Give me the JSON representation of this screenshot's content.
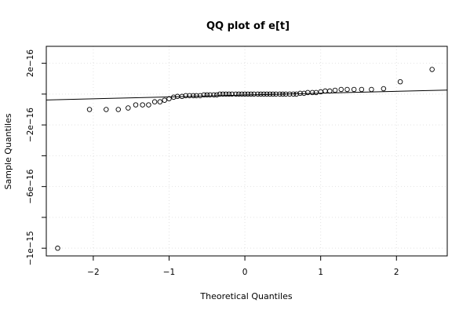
{
  "chart_data": {
    "type": "scatter",
    "title": "QQ plot of e[t]",
    "xlabel": "Theoretical Quantiles",
    "ylabel": "Sample Quantiles",
    "xlim": [
      -2.62,
      2.67
    ],
    "ylim": [
      -1.05e-15,
      3.1e-16
    ],
    "x_ticks": [
      -2,
      -1,
      0,
      1,
      2
    ],
    "x_tick_labels": [
      "−2",
      "−1",
      "0",
      "1",
      "2"
    ],
    "y_ticks": [
      2e-16,
      0,
      -2e-16,
      -4e-16,
      -6e-16,
      -8e-16,
      -1e-15
    ],
    "y_tick_labels": [
      "2e−16",
      "",
      "−2e−16",
      "",
      "−6e−16",
      "",
      "−1e−15"
    ],
    "grid": true,
    "reference_line": {
      "x": [
        -2.62,
        2.67
      ],
      "y": [
        -3.8e-17,
        2.6e-17
      ]
    },
    "points": [
      [
        -2.47,
        -1e-15
      ],
      [
        -2.05,
        -1e-16
      ],
      [
        -1.83,
        -1e-16
      ],
      [
        -1.67,
        -1e-16
      ],
      [
        -1.54,
        -9e-17
      ],
      [
        -1.44,
        -7e-17
      ],
      [
        -1.35,
        -7e-17
      ],
      [
        -1.27,
        -7e-17
      ],
      [
        -1.19,
        -5e-17
      ],
      [
        -1.12,
        -5e-17
      ],
      [
        -1.06,
        -4e-17
      ],
      [
        -1.0,
        -3e-17
      ],
      [
        -0.94,
        -2e-17
      ],
      [
        -0.89,
        -1.5e-17
      ],
      [
        -0.83,
        -1.5e-17
      ],
      [
        -0.78,
        -1e-17
      ],
      [
        -0.73,
        -1e-17
      ],
      [
        -0.68,
        -1e-17
      ],
      [
        -0.64,
        -1e-17
      ],
      [
        -0.59,
        -1e-17
      ],
      [
        -0.54,
        -5e-18
      ],
      [
        -0.5,
        -5e-18
      ],
      [
        -0.46,
        -5e-18
      ],
      [
        -0.41,
        -5e-18
      ],
      [
        -0.37,
        -5e-18
      ],
      [
        -0.33,
        0.0
      ],
      [
        -0.29,
        0.0
      ],
      [
        -0.25,
        0.0
      ],
      [
        -0.21,
        0.0
      ],
      [
        -0.17,
        0.0
      ],
      [
        -0.12,
        0.0
      ],
      [
        -0.08,
        0.0
      ],
      [
        -0.04,
        0.0
      ],
      [
        0.0,
        0.0
      ],
      [
        0.04,
        0.0
      ],
      [
        0.08,
        0.0
      ],
      [
        0.12,
        0.0
      ],
      [
        0.17,
        0.0
      ],
      [
        0.21,
        0.0
      ],
      [
        0.25,
        0.0
      ],
      [
        0.29,
        0.0
      ],
      [
        0.33,
        0.0
      ],
      [
        0.37,
        0.0
      ],
      [
        0.41,
        0.0
      ],
      [
        0.46,
        0.0
      ],
      [
        0.5,
        0.0
      ],
      [
        0.54,
        0.0
      ],
      [
        0.59,
        0.0
      ],
      [
        0.64,
        0.0
      ],
      [
        0.68,
        0.0
      ],
      [
        0.73,
        5e-18
      ],
      [
        0.78,
        5e-18
      ],
      [
        0.83,
        1e-17
      ],
      [
        0.89,
        1e-17
      ],
      [
        0.94,
        1e-17
      ],
      [
        1.0,
        1.5e-17
      ],
      [
        1.06,
        2e-17
      ],
      [
        1.12,
        2e-17
      ],
      [
        1.19,
        2.5e-17
      ],
      [
        1.27,
        3e-17
      ],
      [
        1.35,
        3e-17
      ],
      [
        1.44,
        3e-17
      ],
      [
        1.54,
        3e-17
      ],
      [
        1.67,
        3e-17
      ],
      [
        1.83,
        3.5e-17
      ],
      [
        2.05,
        8e-17
      ],
      [
        2.47,
        1.6e-16
      ]
    ]
  }
}
